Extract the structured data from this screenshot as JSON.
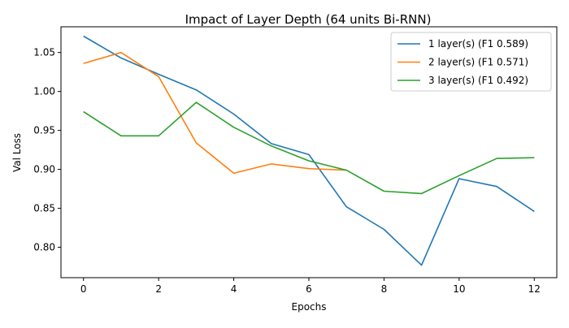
{
  "chart_data": {
    "type": "line",
    "title": "Impact of Layer Depth (64 units Bi-RNN)",
    "xlabel": "Epochs",
    "ylabel": "Val Loss",
    "xlim": [
      -0.6,
      12.6
    ],
    "ylim": [
      0.761,
      1.083
    ],
    "xticks": [
      0,
      2,
      4,
      6,
      8,
      10,
      12
    ],
    "xtick_labels": [
      "0",
      "2",
      "4",
      "6",
      "8",
      "10",
      "12"
    ],
    "yticks": [
      0.8,
      0.85,
      0.9,
      0.95,
      1.0,
      1.05
    ],
    "ytick_labels": [
      "0.80",
      "0.85",
      "0.90",
      "0.95",
      "1.00",
      "1.05"
    ],
    "grid": false,
    "legend_position": "top-right",
    "series": [
      {
        "name": "1 layer(s) (F1 0.589)",
        "color": "#1f77b4",
        "x": [
          0,
          1,
          2,
          3,
          4,
          5,
          6,
          7,
          8,
          9,
          10,
          11,
          12
        ],
        "y": [
          1.071,
          1.043,
          1.022,
          1.002,
          0.971,
          0.933,
          0.919,
          0.852,
          0.823,
          0.777,
          0.888,
          0.878,
          0.846
        ]
      },
      {
        "name": "2 layer(s) (F1 0.571)",
        "color": "#ff7f0e",
        "x": [
          0,
          1,
          2,
          3,
          4,
          5,
          6,
          7
        ],
        "y": [
          1.036,
          1.05,
          1.019,
          0.934,
          0.895,
          0.907,
          0.901,
          0.899
        ]
      },
      {
        "name": "3 layer(s) (F1 0.492)",
        "color": "#2ca02c",
        "x": [
          0,
          1,
          2,
          3,
          4,
          5,
          6,
          7,
          8,
          9,
          10,
          11,
          12
        ],
        "y": [
          0.974,
          0.943,
          0.943,
          0.986,
          0.954,
          0.93,
          0.911,
          0.899,
          0.872,
          0.869,
          0.892,
          0.914,
          0.915
        ]
      }
    ]
  }
}
